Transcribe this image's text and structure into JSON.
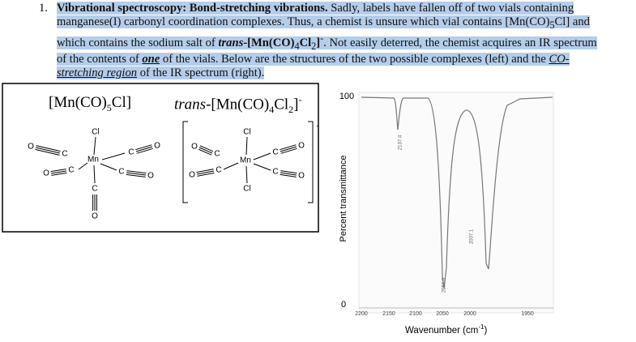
{
  "question": {
    "number": "1.",
    "segments": [
      "Vibrational spectroscopy: Bond-stretching vibrations.",
      " Sadly, labels have fallen off of two vials containing manganese(I) carbonyl coordination complexes. Thus, a chemist is unsure which vial contains [Mn(CO)",
      "5",
      "Cl] and which contains the sodium salt of ",
      "trans",
      "-[Mn(CO)",
      "4",
      "Cl",
      "2",
      "]",
      "-",
      ". Not easily deterred, the chemist acquires an IR spectrum of the contents of ",
      "one",
      " of the vials. Below are the structures of the two possible complexes (left) and the ",
      "CO-stretching region",
      " of the IR spectrum (right)."
    ]
  },
  "structures": [
    {
      "name_parts": [
        "[Mn(CO)",
        "5",
        "Cl]"
      ],
      "atoms": [
        "Cl",
        "O",
        "C",
        "Mn",
        "C",
        "O",
        "O",
        "C",
        "C",
        "O",
        "C",
        "O"
      ]
    },
    {
      "name_parts": [
        "trans",
        "-[Mn(CO)",
        "4",
        "Cl",
        "2",
        "]",
        "-"
      ],
      "atoms": [
        "Cl",
        "O",
        "C",
        "Mn",
        "C",
        "O",
        "O",
        "C",
        "C",
        "O",
        "Cl"
      ],
      "charge": "-"
    }
  ],
  "spectrum": {
    "y_ticks": [
      "100",
      "0"
    ],
    "y_label": "Percent transmittance",
    "x_ticks": [
      "2200",
      "2150",
      "2100",
      "2050",
      "2000",
      "1950"
    ],
    "x_label_parts": [
      "Wavenumber (cm",
      "-1",
      ")"
    ],
    "peak_labels": [
      "2137.4",
      "2050.0",
      "2007.1"
    ]
  }
}
